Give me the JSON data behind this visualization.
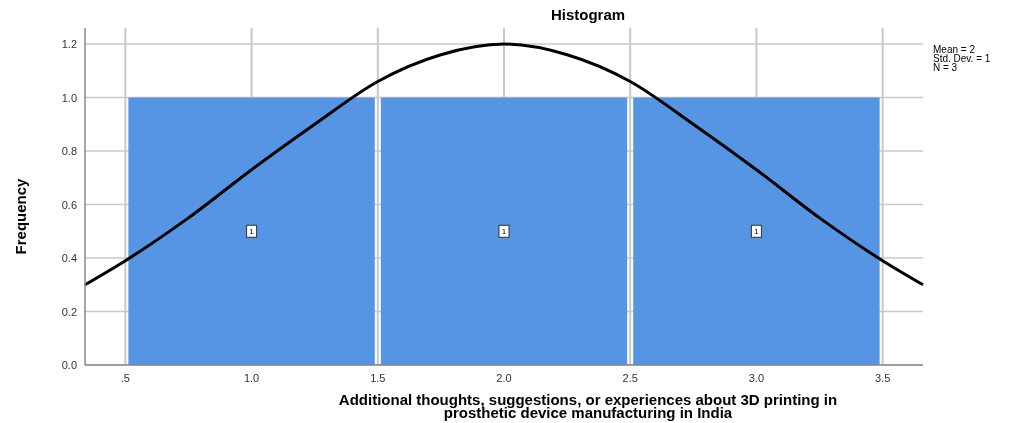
{
  "chart_data": {
    "type": "histogram",
    "title": "Histogram",
    "xlabel": "Additional thoughts, suggestions, or experiences about 3D printing in prosthetic device manufacturing in India",
    "ylabel": "Frequency",
    "annotations": [
      "Mean = 2",
      "Std. Dev. = 1",
      "N = 3"
    ],
    "bins": [
      0.5,
      1.5,
      2.5,
      3.5
    ],
    "series": [
      {
        "color": "#5595e3",
        "values": [
          1,
          1,
          1
        ],
        "value_labels": [
          "1",
          "1",
          "1"
        ]
      },
      {
        "type": "line",
        "color": "#000000",
        "x": [
          0.34,
          0.5,
          0.75,
          1.0,
          1.25,
          1.5,
          1.75,
          2.0,
          2.25,
          2.5,
          2.75,
          3.0,
          3.25,
          3.5,
          3.66
        ],
        "values": [
          0.3,
          0.39,
          0.55,
          0.73,
          0.9,
          1.06,
          1.16,
          1.2,
          1.16,
          1.06,
          0.9,
          0.73,
          0.55,
          0.39,
          0.3
        ]
      }
    ],
    "xlim": [
      0.34,
      3.66
    ],
    "xticks": [
      {
        "value": 0.5,
        "label": ".5"
      },
      {
        "value": 1.0,
        "label": "1.0"
      },
      {
        "value": 1.5,
        "label": "1.5"
      },
      {
        "value": 2.0,
        "label": "2.0"
      },
      {
        "value": 2.5,
        "label": "2.5"
      },
      {
        "value": 3.0,
        "label": "3.0"
      },
      {
        "value": 3.5,
        "label": "3.5"
      }
    ],
    "ylim": [
      0,
      1.26
    ],
    "yticks": [
      {
        "value": 0,
        "label": "0.0"
      },
      {
        "value": 0.2,
        "label": "0.2"
      },
      {
        "value": 0.4,
        "label": "0.4"
      },
      {
        "value": 0.6,
        "label": "0.6"
      },
      {
        "value": 0.8,
        "label": "0.8"
      },
      {
        "value": 1.0,
        "label": "1.0"
      },
      {
        "value": 1.2,
        "label": "1.2"
      }
    ],
    "grid": true
  }
}
